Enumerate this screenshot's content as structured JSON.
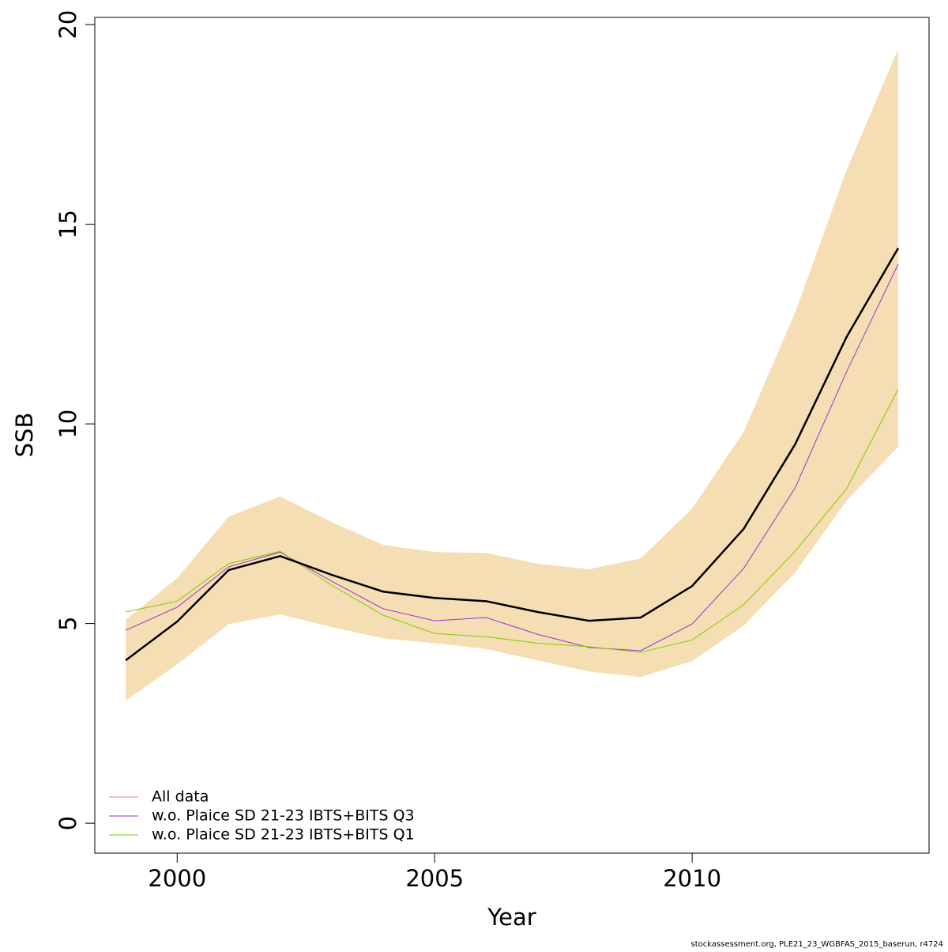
{
  "chart_data": {
    "type": "line",
    "xlabel": "Year",
    "ylabel": "SSB",
    "footnote": "stockassessment.org, PLE21_23_WGBFAS_2015_baserun, r4724",
    "x": [
      1999,
      2000,
      2001,
      2002,
      2003,
      2004,
      2005,
      2006,
      2007,
      2008,
      2009,
      2010,
      2011,
      2012,
      2013,
      2014
    ],
    "band": {
      "color": "#f5deb3",
      "upper": [
        5.09,
        6.14,
        7.68,
        8.18,
        7.54,
        6.97,
        6.79,
        6.77,
        6.5,
        6.36,
        6.63,
        7.88,
        9.8,
        12.79,
        16.36,
        19.39
      ],
      "lower": [
        3.07,
        3.98,
        4.99,
        5.23,
        4.91,
        4.63,
        4.51,
        4.36,
        4.08,
        3.8,
        3.66,
        4.06,
        4.95,
        6.28,
        8.08,
        9.43
      ]
    },
    "series": [
      {
        "name": "All data",
        "color": "#f08080",
        "line_color": "#000000",
        "line_width": 2.5,
        "values": [
          4.08,
          5.05,
          6.34,
          6.69,
          6.22,
          5.8,
          5.64,
          5.56,
          5.29,
          5.07,
          5.15,
          5.94,
          7.37,
          9.49,
          12.18,
          14.4
        ]
      },
      {
        "name": "w.o. Plaice SD 21-23 IBTS+BITS Q3",
        "color": "#9932cc",
        "values": [
          4.83,
          5.41,
          6.42,
          6.79,
          6.06,
          5.37,
          5.07,
          5.15,
          4.73,
          4.4,
          4.32,
          4.99,
          6.38,
          8.4,
          11.31,
          14.0
        ]
      },
      {
        "name": "w.o. Plaice SD 21-23 IBTS+BITS Q1",
        "color": "#7ccd00",
        "values": [
          5.29,
          5.56,
          6.5,
          6.81,
          5.96,
          5.21,
          4.75,
          4.67,
          4.51,
          4.42,
          4.28,
          4.59,
          5.47,
          6.81,
          8.38,
          10.87
        ]
      }
    ],
    "xlim": [
      1998.4,
      2014.6
    ],
    "xticks": [
      2000,
      2005,
      2010
    ],
    "ylim": [
      -0.75,
      20.18
    ],
    "yticks": [
      0,
      5,
      10,
      15,
      20
    ],
    "legend": "bottom-left"
  }
}
